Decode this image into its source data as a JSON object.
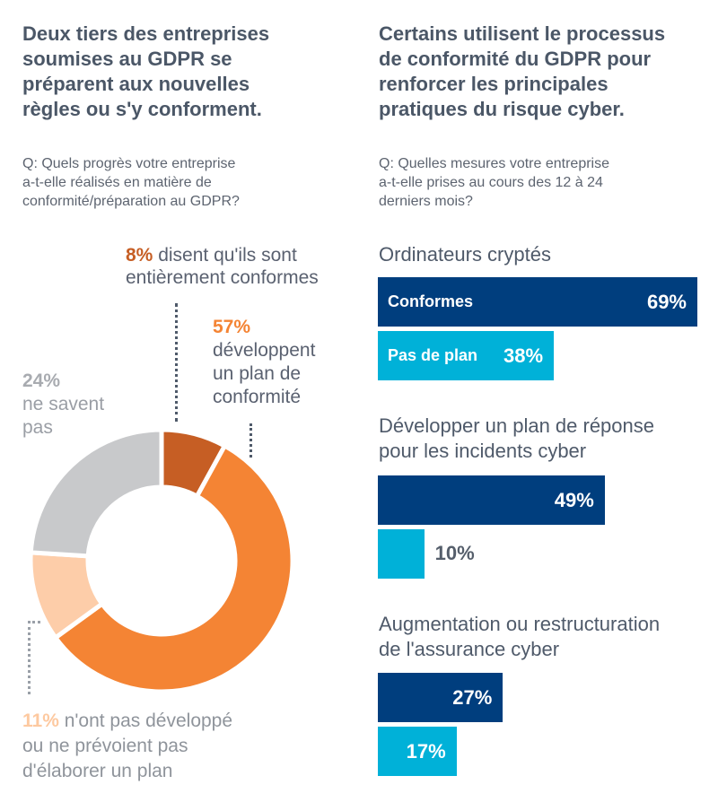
{
  "left": {
    "title": [
      "Deux tiers des entreprises",
      "soumises au GDPR se",
      "préparent aux nouvelles",
      "règles ou s'y conforment."
    ],
    "question": [
      "Q: Quels progrès votre entreprise",
      "a-t-elle réalisés en matière de",
      "conformité/préparation au GDPR?"
    ]
  },
  "right": {
    "title": [
      "Certains utilisent le processus",
      "de conformité du GDPR pour",
      "renforcer les principales",
      "pratiques du risque cyber."
    ],
    "question": [
      "Q: Quelles mesures votre entreprise",
      "a-t-elle prises au cours des 12 à 24",
      "derniers mois?"
    ]
  },
  "colors": {
    "fully_compliant": "#c65e24",
    "developing": "#f48434",
    "no_plan": "#fdcda9",
    "dont_know": "#c8c9cb",
    "compliant_bar": "#003e7e",
    "no_plan_bar": "#00b1d8"
  },
  "chart_data": [
    {
      "type": "pie",
      "variant": "donut",
      "title": "Deux tiers des entreprises soumises au GDPR se préparent aux nouvelles règles ou s'y conforment.",
      "categories": [
        "disent qu'ils sont entièrement conformes",
        "développent un plan de conformité",
        "n'ont pas développé ou ne prévoient pas d'élaborer un plan",
        "ne savent pas"
      ],
      "values": [
        8,
        57,
        11,
        24
      ],
      "labels": {
        "fully": {
          "pct": "8%",
          "line1": " disent qu'ils sont",
          "line2": "entièrement conformes"
        },
        "developing": {
          "pct": "57%",
          "lines": [
            "développent",
            "un plan de",
            "conformité"
          ]
        },
        "dont_know": {
          "pct": "24%",
          "lines": [
            "ne savent",
            "pas"
          ]
        },
        "no_plan": {
          "pct": "11%",
          "line1": " n'ont pas développé",
          "line2": "ou ne prévoient pas",
          "line3": "d'élaborer un plan"
        }
      }
    },
    {
      "type": "bar",
      "orientation": "horizontal",
      "title": "Certains utilisent le processus de conformité du GDPR pour renforcer les principales pratiques du risque cyber.",
      "categories": [
        "Ordinateurs cryptés",
        "Développer un plan de réponse pour les incidents cyber",
        "Augmentation ou restructuration de l'assurance cyber"
      ],
      "category_lines": [
        [
          "Ordinateurs cryptés"
        ],
        [
          "Développer un plan de réponse",
          "pour les incidents cyber"
        ],
        [
          "Augmentation ou restructuration",
          "de l'assurance cyber"
        ]
      ],
      "series": [
        {
          "name": "Conformes",
          "values": [
            69,
            49,
            27
          ]
        },
        {
          "name": "Pas de plan",
          "values": [
            38,
            10,
            17
          ]
        }
      ],
      "value_labels": [
        [
          "69%",
          "38%"
        ],
        [
          "49%",
          "10%"
        ],
        [
          "27%",
          "17%"
        ]
      ],
      "xlim": [
        0,
        100
      ]
    }
  ]
}
